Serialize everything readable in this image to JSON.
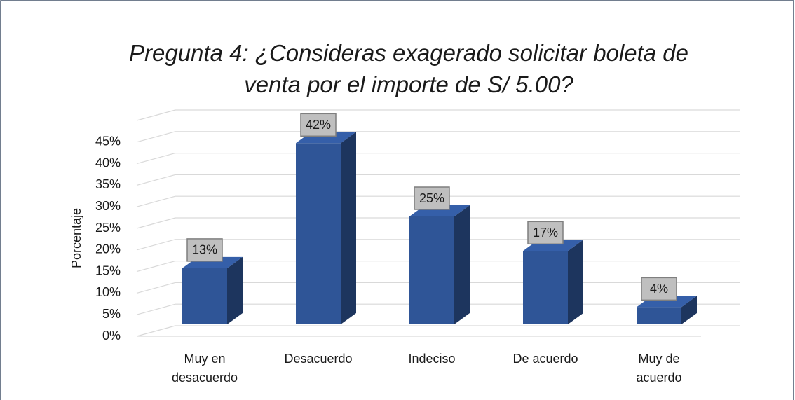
{
  "chart_data": {
    "type": "bar3d",
    "title": "Pregunta 4: ¿Consideras exagerado solicitar boleta de venta por el importe de S/ 5.00?",
    "y_label": "Porcentaje",
    "categories": [
      "Muy en desacuerdo",
      "Desacuerdo",
      "Indeciso",
      "De acuerdo",
      "Muy de acuerdo"
    ],
    "values": [
      13,
      42,
      25,
      17,
      4
    ],
    "value_labels": [
      "13%",
      "42%",
      "25%",
      "17%",
      "4%"
    ],
    "color": "#2f5597",
    "ylim": [
      0,
      50
    ],
    "yticks": [
      {
        "value": 0,
        "label": "0%"
      },
      {
        "value": 5,
        "label": "5%"
      },
      {
        "value": 10,
        "label": "10%"
      },
      {
        "value": 15,
        "label": "15%"
      },
      {
        "value": 20,
        "label": "20%"
      },
      {
        "value": 25,
        "label": "25%"
      },
      {
        "value": 30,
        "label": "30%"
      },
      {
        "value": 35,
        "label": "35%"
      },
      {
        "value": 40,
        "label": "40%"
      },
      {
        "value": 45,
        "label": "45%"
      }
    ],
    "grid": true
  }
}
